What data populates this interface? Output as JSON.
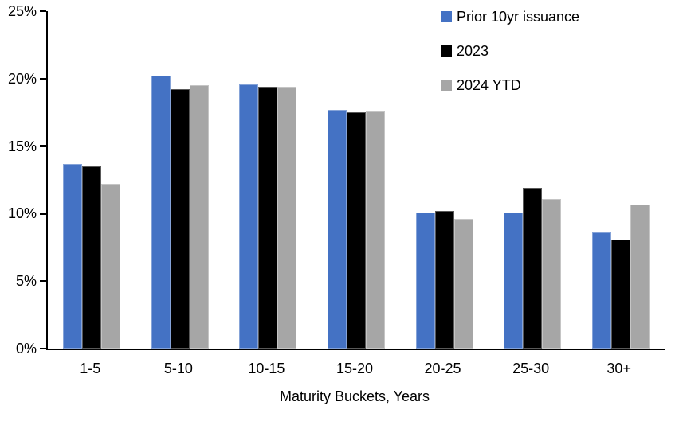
{
  "chart_data": {
    "type": "bar",
    "categories": [
      "1-5",
      "5-10",
      "10-15",
      "15-20",
      "20-25",
      "25-30",
      "30+"
    ],
    "series": [
      {
        "name": "Prior 10yr issuance",
        "color": "#4472C4",
        "values": [
          13.7,
          20.2,
          19.6,
          17.7,
          10.1,
          10.1,
          8.6
        ]
      },
      {
        "name": "2023",
        "color": "#000000",
        "values": [
          13.5,
          19.2,
          19.4,
          17.5,
          10.2,
          11.9,
          8.1
        ]
      },
      {
        "name": "2024 YTD",
        "color": "#A6A6A6",
        "values": [
          12.2,
          19.5,
          19.4,
          17.6,
          9.6,
          11.1,
          10.7
        ]
      }
    ],
    "title": "",
    "xlabel": "Maturity Buckets, Years",
    "ylabel": "",
    "ylim": [
      0,
      25
    ],
    "ytick_step": 5,
    "ytick_labels": [
      "0%",
      "5%",
      "10%",
      "15%",
      "20%",
      "25%"
    ],
    "grid": false,
    "legend_position": "top-right",
    "axis_color": "#000000",
    "background_color": "#FFFFFF"
  }
}
